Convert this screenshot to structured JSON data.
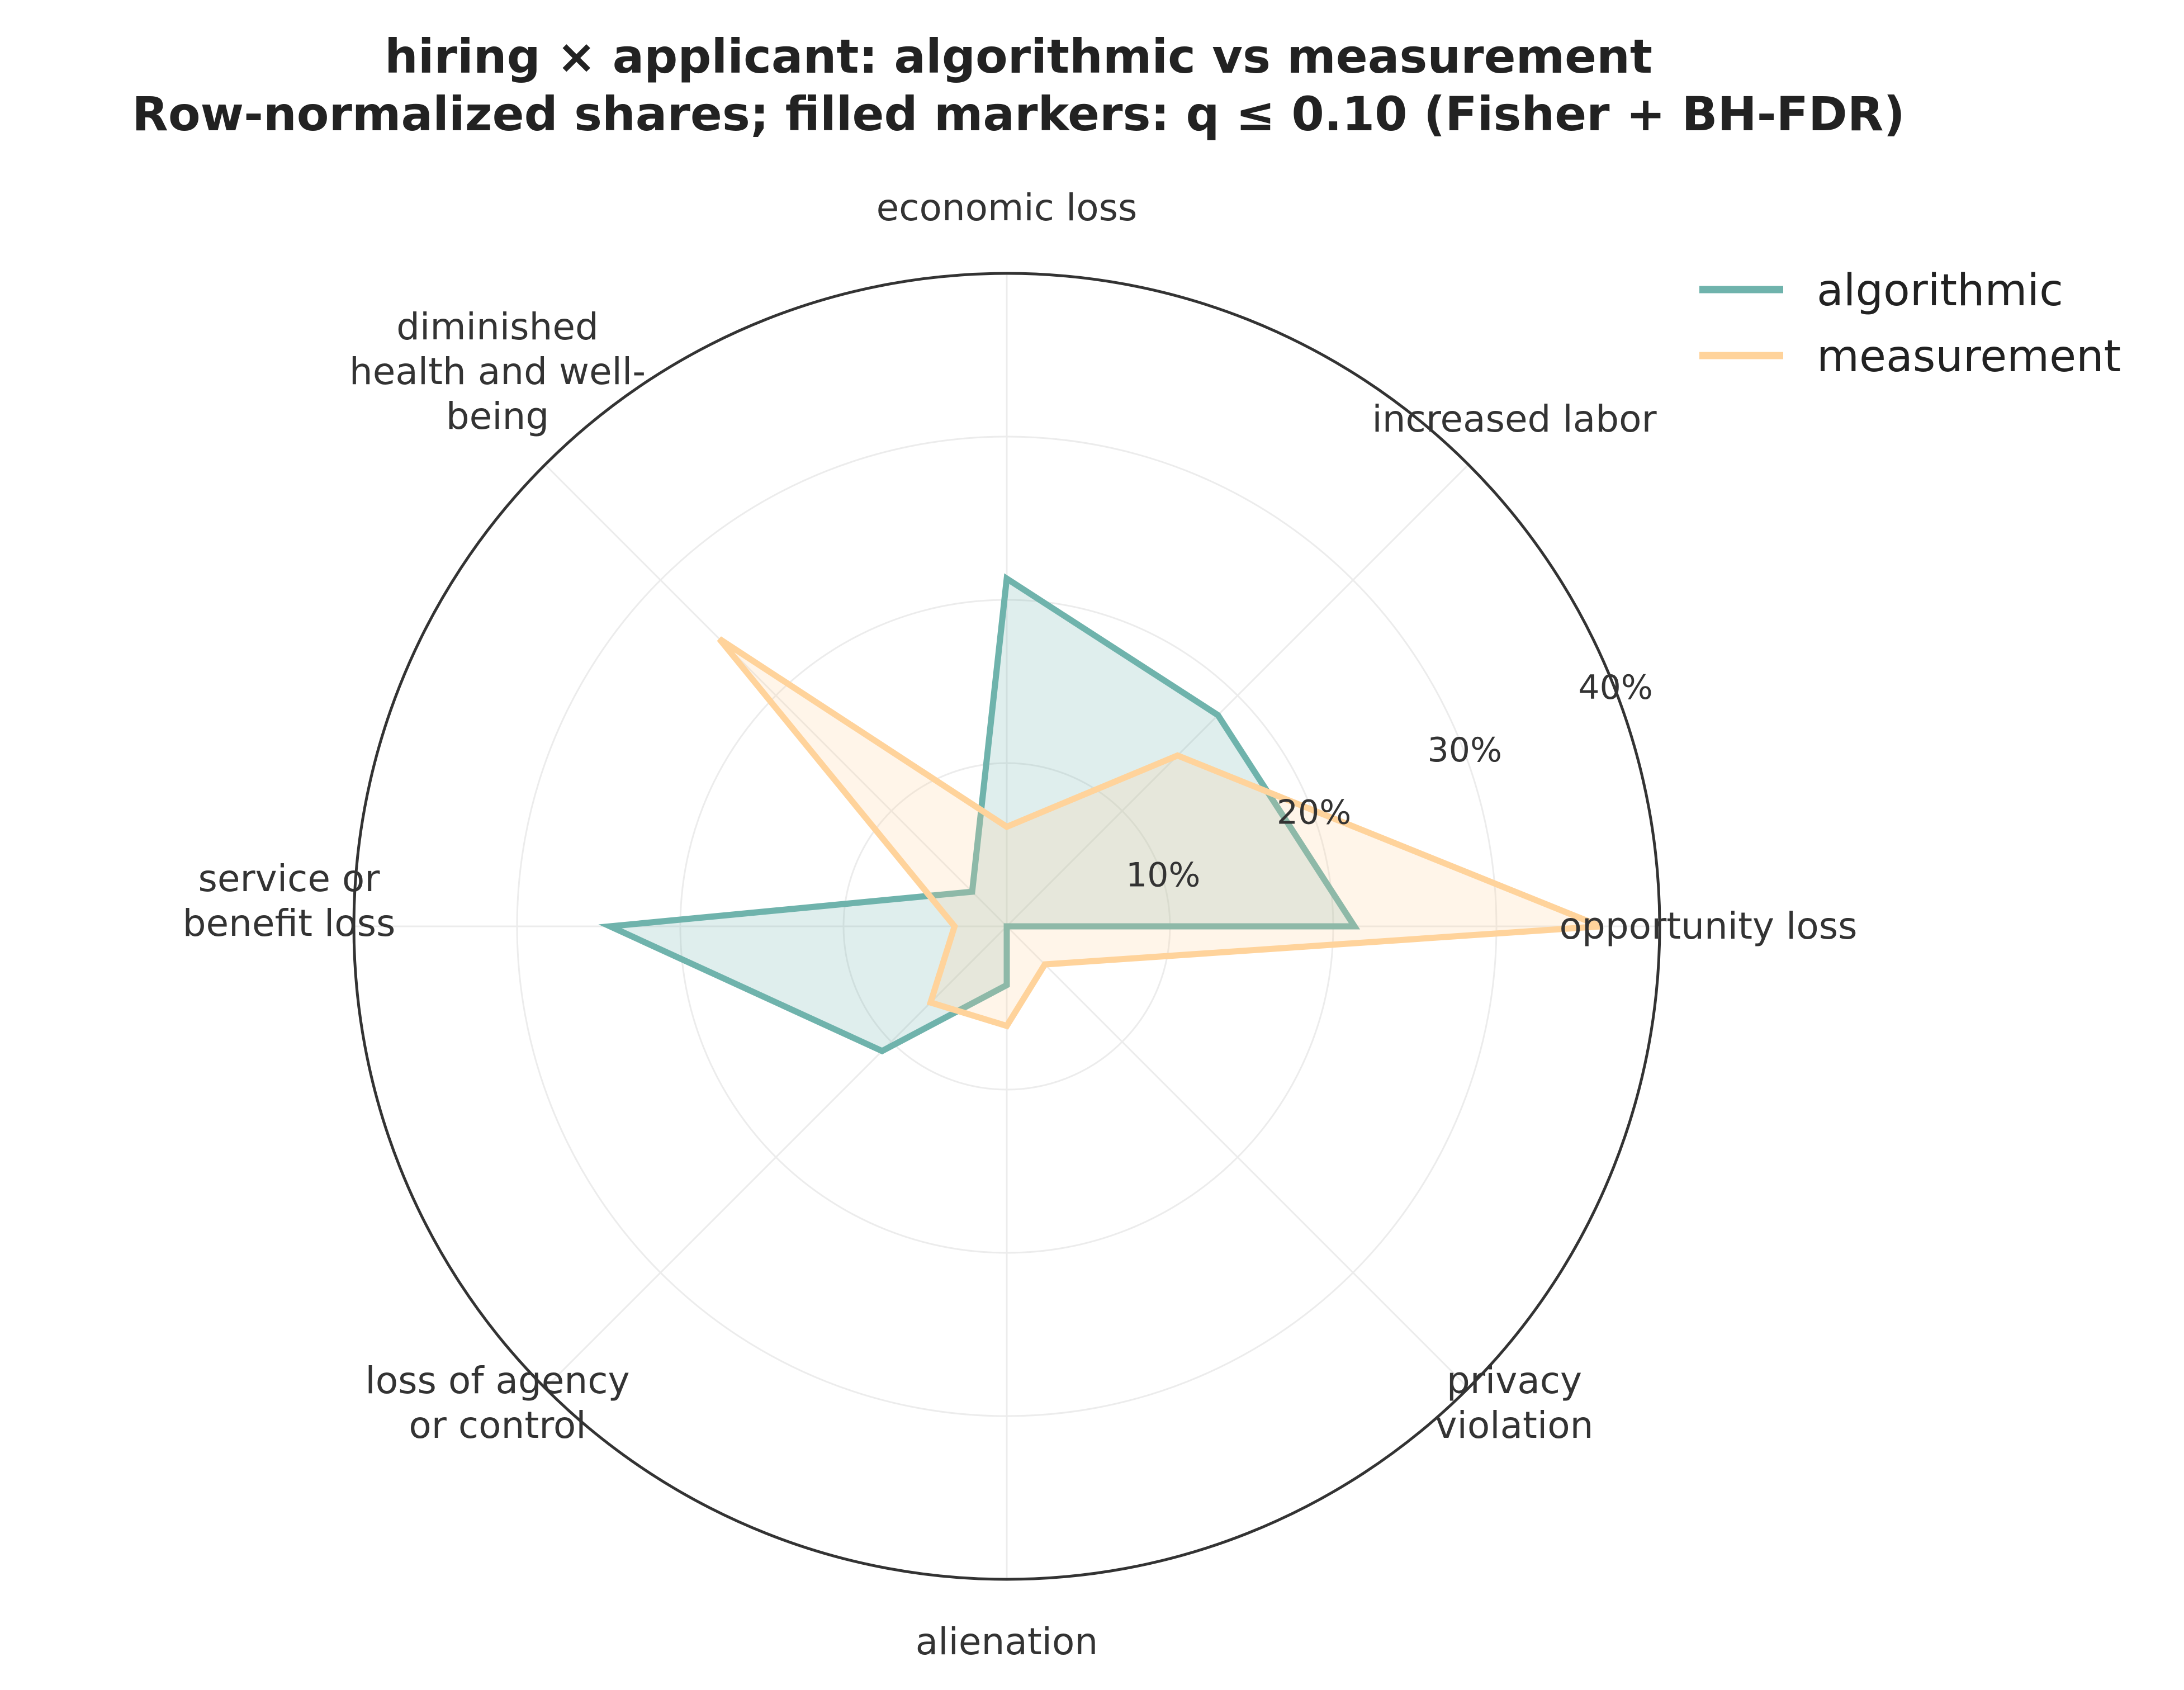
{
  "chart_data": {
    "type": "radar",
    "title": "hiring × applicant: algorithmic vs measurement",
    "subtitle": "Row-normalized shares; filled markers: q ≤ 0.10 (Fisher + BH-FDR)",
    "categories": [
      "opportunity loss",
      "increased labor",
      "economic loss",
      "diminished health and well-being",
      "service or benefit loss",
      "loss of agency or control",
      "alienation",
      "privacy violation"
    ],
    "category_display": [
      [
        "opportunity loss"
      ],
      [
        "increased labor"
      ],
      [
        "economic loss"
      ],
      [
        "diminished",
        "health and well-",
        "being"
      ],
      [
        "service or",
        "benefit loss"
      ],
      [
        "loss of agency",
        "or control"
      ],
      [
        "alienation"
      ],
      [
        "privacy",
        "violation"
      ]
    ],
    "series": [
      {
        "name": "algorithmic",
        "color": "#6fb3ac",
        "values": [
          21.3,
          18.3,
          21.3,
          3.0,
          24.3,
          10.8,
          3.6,
          0.0
        ]
      },
      {
        "name": "measurement",
        "color": "#ffd39b",
        "values": [
          36.4,
          14.8,
          6.1,
          24.9,
          3.2,
          6.6,
          6.1,
          3.3
        ]
      }
    ],
    "r_ticks": [
      10,
      20,
      30,
      40
    ],
    "r_tick_labels": [
      "10%",
      "20%",
      "30%",
      "40%"
    ],
    "rlim": [
      0,
      40
    ],
    "grid": true,
    "legend_position": "top-right"
  }
}
